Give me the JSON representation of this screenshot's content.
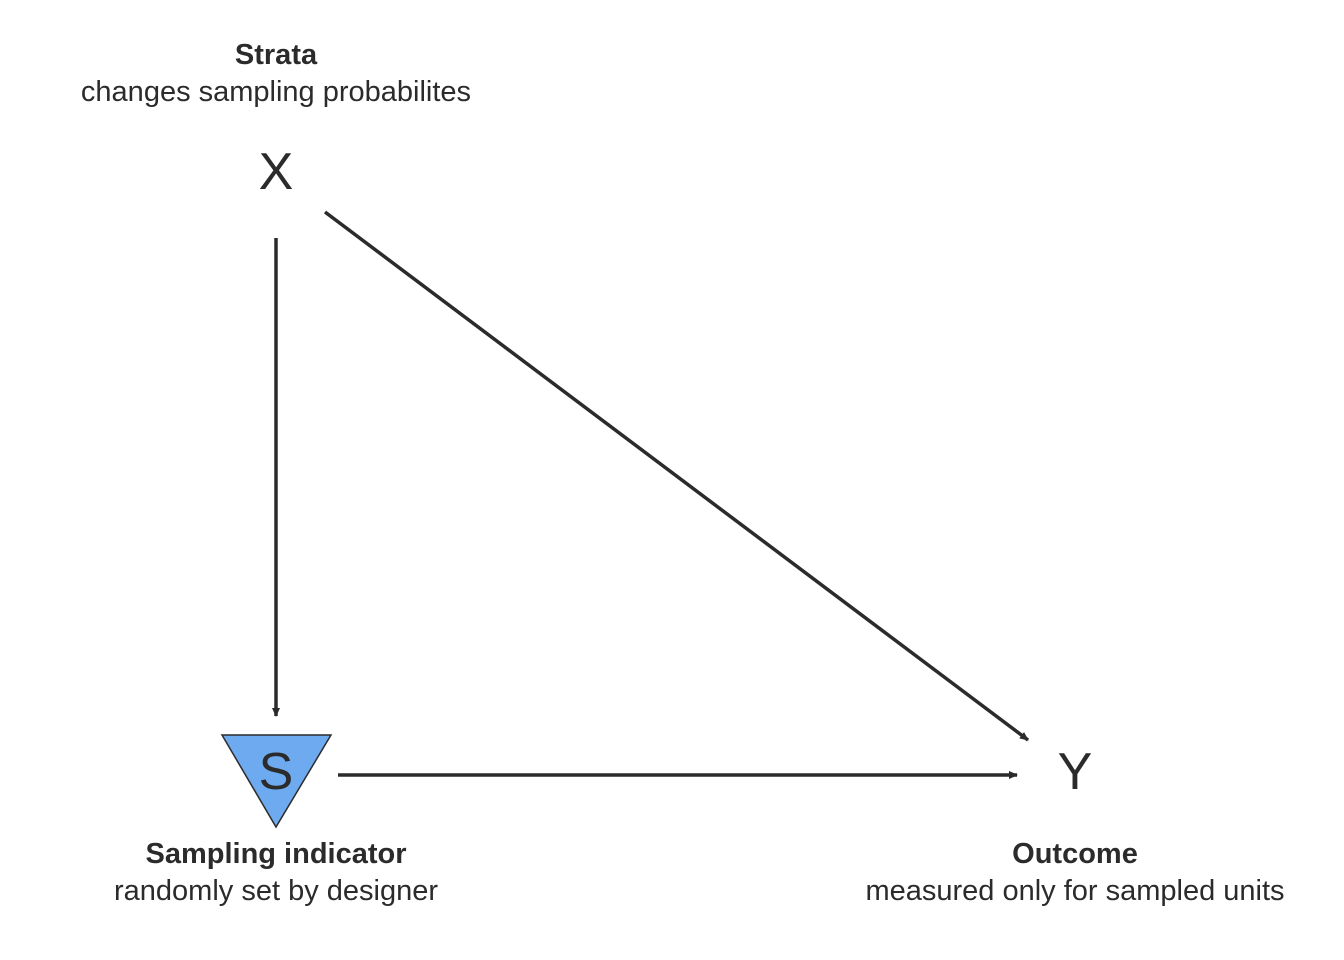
{
  "nodes": {
    "x": {
      "letter": "X",
      "title": "Strata",
      "subtitle": "changes sampling probabilites"
    },
    "s": {
      "letter": "S",
      "title": "Sampling indicator",
      "subtitle": "randomly set by designer",
      "fill_color": "#6eaaf0"
    },
    "y": {
      "letter": "Y",
      "title": "Outcome",
      "subtitle": "measured only for sampled units"
    }
  },
  "edges": [
    {
      "from": "X",
      "to": "S"
    },
    {
      "from": "X",
      "to": "Y"
    },
    {
      "from": "S",
      "to": "Y"
    }
  ],
  "colors": {
    "edge": "#2b2b2b",
    "text": "#2b2b2b"
  }
}
